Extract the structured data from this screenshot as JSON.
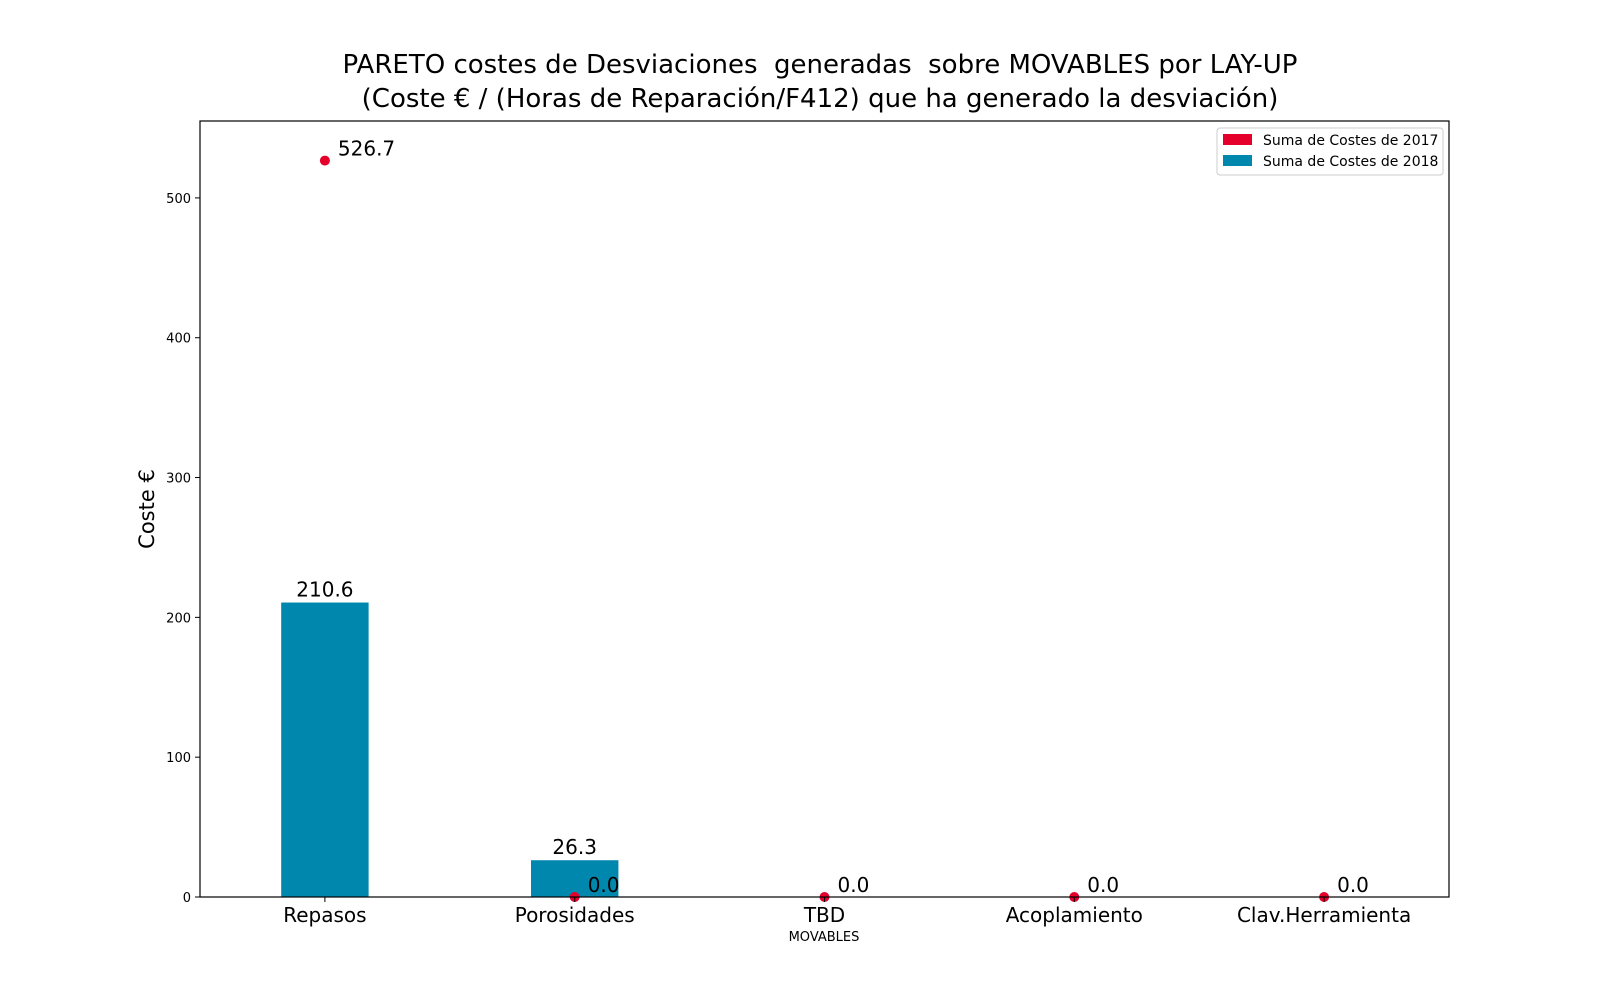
{
  "chart_data": {
    "type": "bar",
    "title_lines": [
      "PARETO costes de Desviaciones  generadas  sobre MOVABLES por LAY-UP",
      "(Coste € / (Horas de Reparación/F412) que ha generado la desviación)"
    ],
    "xlabel": "MOVABLES",
    "ylabel": "Coste €",
    "categories": [
      "Repasos",
      "Porosidades",
      "TBD",
      "Acoplamiento",
      "Clav.Herramienta"
    ],
    "ylim": [
      0,
      555
    ],
    "yticks": [
      0,
      100,
      200,
      300,
      400,
      500
    ],
    "grid": false,
    "legend_position": "top-right",
    "series": [
      {
        "name": "Suma de Costes de 2017",
        "mark": "point",
        "color": "#e4002b",
        "values": [
          526.7,
          0.0,
          0.0,
          0.0,
          0.0
        ],
        "labels": [
          "526.7",
          "0.0",
          "0.0",
          "0.0",
          "0.0"
        ]
      },
      {
        "name": "Suma de Costes de 2018",
        "mark": "bar",
        "color": "#0087ad",
        "values": [
          210.6,
          26.3,
          0.0,
          0.0,
          0.0
        ],
        "labels": [
          "210.6",
          "26.3",
          "",
          "",
          ""
        ]
      }
    ]
  }
}
